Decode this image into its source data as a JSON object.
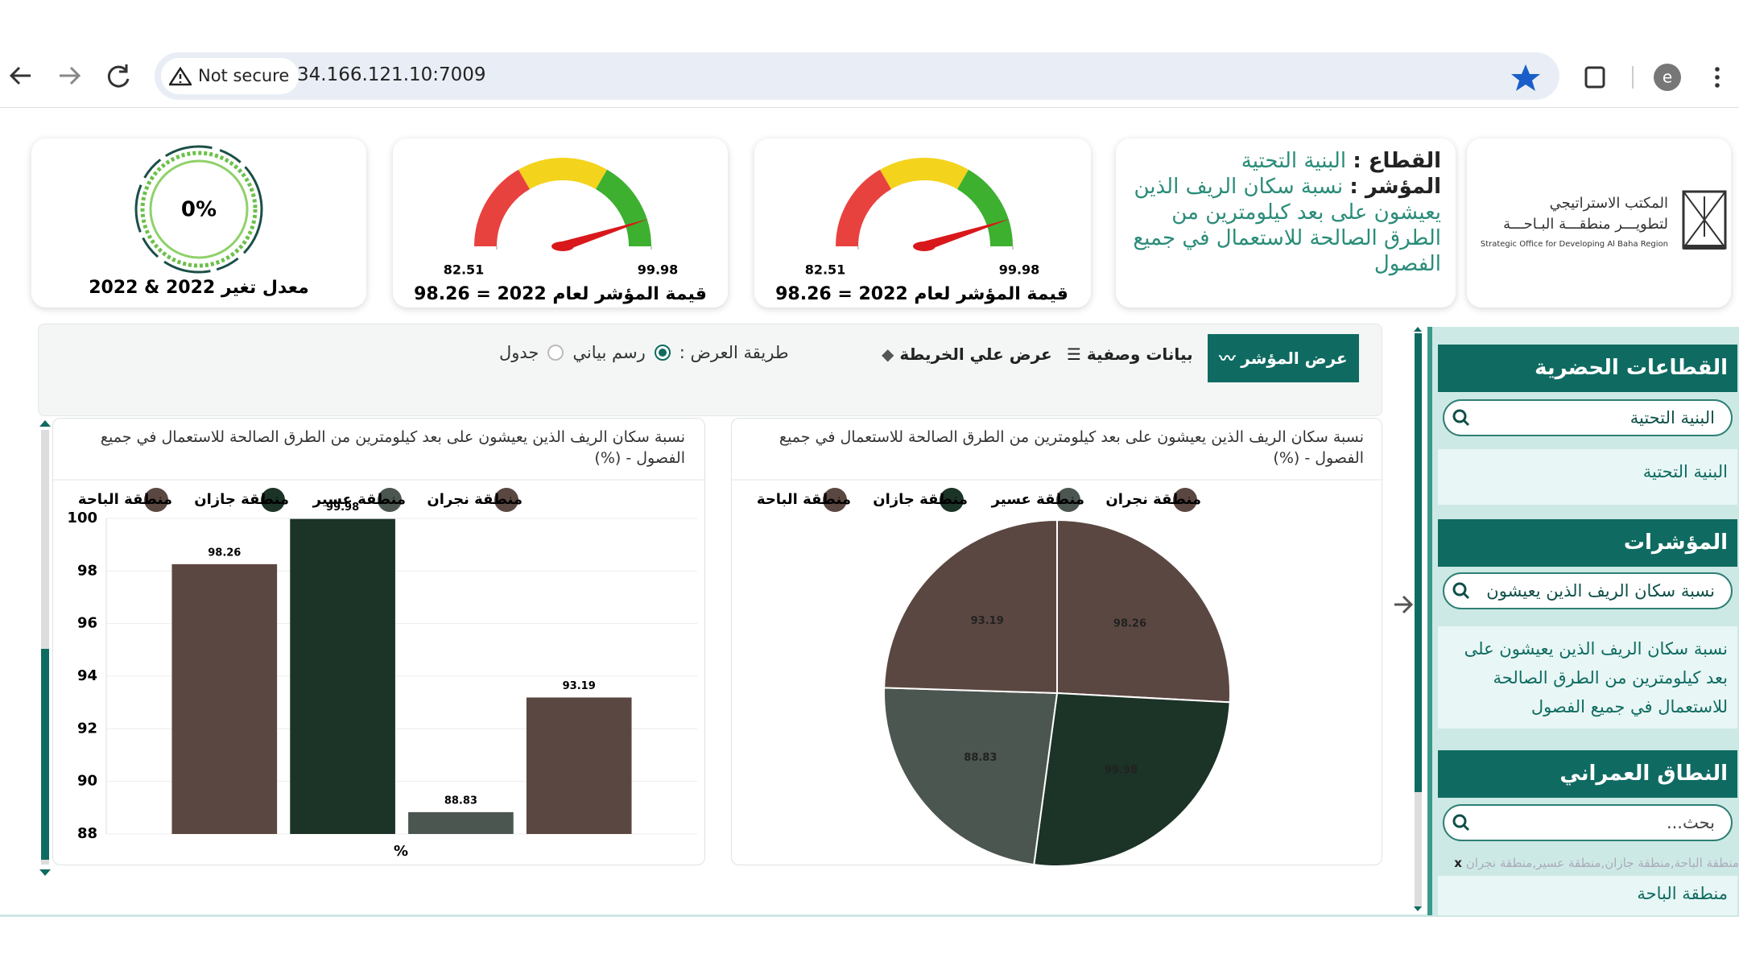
{
  "browser": {
    "security": "Not secure",
    "url": "34.166.121.10:7009",
    "profile": "e"
  },
  "logo": {
    "line1": "المكتب الاستراتيجي",
    "line2": "لتطويـــر منطقـــة البـاحـــة",
    "line3": "Strategic Office for Developing Al Baha Region"
  },
  "sector_card": {
    "sector_label": "القطاع :",
    "sector": "البنية التحتية",
    "indicator_label": "المؤشر :",
    "indicator": "نسبة سكان الريف الذين يعيشون على بعد كيلومترين من الطرق الصالحة للاستعمال في جميع الفصول"
  },
  "gauges": [
    {
      "min": 82.51,
      "max": 99.98,
      "value": 98.26,
      "caption": "قيمة المؤشر لعام 2022 = 98.26"
    },
    {
      "min": 82.51,
      "max": 99.98,
      "value": 98.26,
      "caption": "قيمة المؤشر لعام 2022 = 98.26"
    }
  ],
  "change_card": {
    "value": "0%",
    "caption": "معدل تغير 2022 & 2022"
  },
  "toolbar": {
    "show_indicator": "عرض المؤشر",
    "metadata": "بيانات وصفية",
    "map_view": "عرض علي الخريطة",
    "display_mode_label": "طريقة العرض :",
    "options": [
      "رسم بياني",
      "جدول"
    ]
  },
  "sidebar": {
    "sections": [
      {
        "title": "القطاعات الحضرية",
        "search": "البنية التحتية",
        "items": [
          "البنية التحتية"
        ]
      },
      {
        "title": "المؤشرات",
        "search": "نسبة سكان الريف الذين يعيشون",
        "items": [
          "نسبة سكان الريف الذين يعيشون على بعد كيلومترين من الطرق الصالحة للاستعمال في جميع الفصول"
        ]
      },
      {
        "title": "النطاق العمراني",
        "search": "بحث...",
        "selected": "منطقة الباحة,منطقة جازان,منطقة عسير,منطقة نجران",
        "clear": "x",
        "items": [
          "منطقة الباحة"
        ]
      }
    ]
  },
  "chart_data": [
    {
      "type": "pie",
      "title": "نسبة سكان الريف الذين يعيشون على بعد كيلومترين من الطرق الصالحة للاستعمال في جميع الفصول - (%)",
      "labels": [
        "منطقة الباحة",
        "منطقة جازان",
        "منطقة عسير",
        "منطقة نجران"
      ],
      "values": [
        98.26,
        99.98,
        88.83,
        93.19
      ],
      "colors": [
        "#5b4741",
        "#1c3327",
        "#4c5650",
        "#5b4741"
      ]
    },
    {
      "type": "bar",
      "title": "نسبة سكان الريف الذين يعيشون على بعد كيلومترين من الطرق الصالحة للاستعمال في جميع الفصول - (%)",
      "x_label": "%",
      "categories": [
        null
      ],
      "series": [
        {
          "name": "منطقة الباحة",
          "color": "#5b4741",
          "values": [
            98.26
          ]
        },
        {
          "name": "منطقة جازان",
          "color": "#1c3327",
          "values": [
            99.98
          ]
        },
        {
          "name": "منطقة عسير",
          "color": "#4c5650",
          "values": [
            88.83
          ]
        },
        {
          "name": "منطقة نجران",
          "color": "#5b4741",
          "values": [
            93.19
          ]
        }
      ],
      "ylim": [
        88,
        100
      ],
      "yticks": [
        88,
        90,
        92,
        94,
        96,
        98,
        100
      ],
      "grid": true
    }
  ]
}
